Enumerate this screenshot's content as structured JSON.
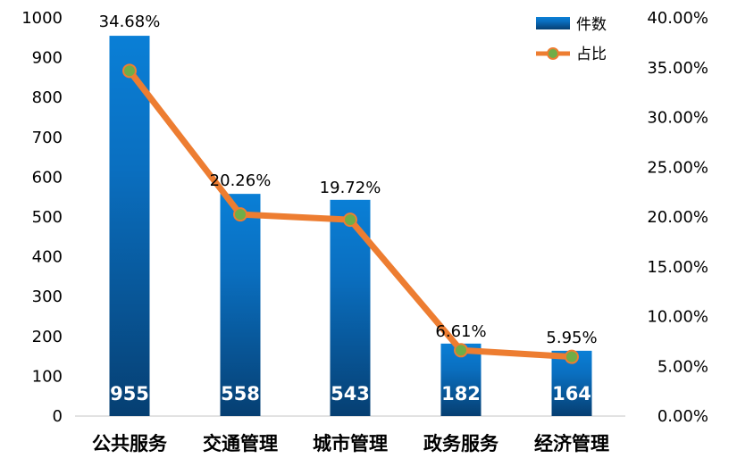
{
  "chart_data": {
    "type": "bar",
    "categories": [
      "公共服务",
      "交通管理",
      "城市管理",
      "政务服务",
      "经济管理"
    ],
    "series": [
      {
        "name": "件数",
        "type": "bar",
        "axis": "left",
        "values": [
          955,
          558,
          543,
          182,
          164
        ],
        "color": "#1f78c8"
      },
      {
        "name": "占比",
        "type": "line",
        "axis": "right",
        "values": [
          34.68,
          20.26,
          19.72,
          6.61,
          5.95
        ],
        "labels": [
          "34.68%",
          "20.26%",
          "19.72%",
          "6.61%",
          "5.95%"
        ],
        "color": "#ed7d31",
        "marker_color": "#70ad47"
      }
    ],
    "y_left": {
      "ylim": [
        0,
        1000
      ],
      "ticks": [
        "0",
        "100",
        "200",
        "300",
        "400",
        "500",
        "600",
        "700",
        "800",
        "900",
        "1000"
      ]
    },
    "y_right": {
      "ylim": [
        0,
        40
      ],
      "ticks": [
        "0.00%",
        "5.00%",
        "10.00%",
        "15.00%",
        "20.00%",
        "25.00%",
        "30.00%",
        "35.00%",
        "40.00%"
      ]
    },
    "legend": {
      "position": "top-right",
      "items": [
        "件数",
        "占比"
      ]
    },
    "grid": false
  }
}
